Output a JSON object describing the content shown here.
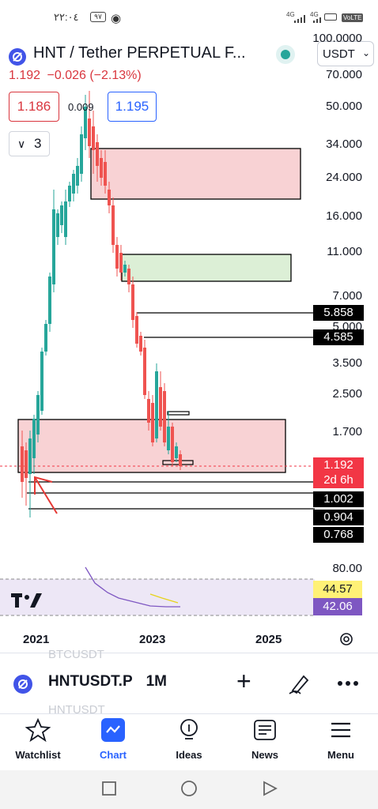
{
  "status_bar": {
    "time": "٢٢:٠٤",
    "badge": "٩٧",
    "signal_1": "4G",
    "signal_2": "4G",
    "volte": "VoLTE"
  },
  "header": {
    "symbol_title": "HNT / Tether PERPETUAL F...",
    "currency": "USDT",
    "last_price": "1.192",
    "change": "−0.026",
    "change_pct": "(−2.13%)",
    "bid": "1.186",
    "spread": "0.009",
    "ask": "1.195",
    "indicators_count": "3"
  },
  "price_axis": {
    "ticks": [
      "100.0000",
      "70.000",
      "50.000",
      "34.000",
      "24.000",
      "16.000",
      "11.000",
      "7.000",
      "5.000",
      "3.500",
      "2.500",
      "1.700"
    ],
    "labels": [
      {
        "text": "5.858",
        "bg": "#000000"
      },
      {
        "text": "4.585",
        "bg": "#000000"
      },
      {
        "text": "1.192",
        "bg": "#f23645"
      },
      {
        "text": "2d 6h",
        "bg": "#f23645"
      },
      {
        "text": "1.002",
        "bg": "#000000"
      },
      {
        "text": "0.904",
        "bg": "#000000"
      },
      {
        "text": "0.768",
        "bg": "#000000"
      }
    ]
  },
  "rsi_panel": {
    "level": "80.00",
    "rsi_value": "44.57",
    "rsi_value_color": "#fff176",
    "ma_value": "42.06",
    "ma_value_color": "#7e57c2"
  },
  "time_axis": {
    "years": [
      "2021",
      "2023",
      "2025"
    ]
  },
  "toolbar": {
    "ghost_top": "BTCUSDT",
    "symbol": "HNTUSDT.P",
    "interval": "1M",
    "ghost_bottom": "HNTUSDT"
  },
  "bottom_nav": {
    "items": [
      {
        "label": "Watchlist",
        "icon": "star-icon"
      },
      {
        "label": "Chart",
        "icon": "chart-icon"
      },
      {
        "label": "Ideas",
        "icon": "lightbulb-icon"
      },
      {
        "label": "News",
        "icon": "news-icon"
      },
      {
        "label": "Menu",
        "icon": "menu-icon"
      }
    ]
  },
  "colors": {
    "up": "#26a69a",
    "down": "#ef5350",
    "accent": "#2962ff",
    "supply_zone": "#f8d2d4",
    "demand_zone": "#dcefd6"
  }
}
